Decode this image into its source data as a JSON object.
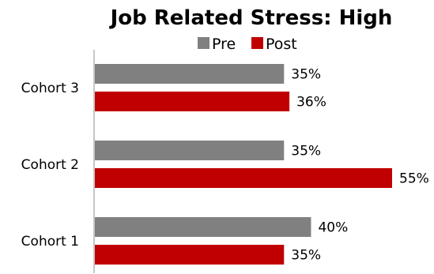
{
  "chart_data": {
    "type": "bar",
    "orientation": "horizontal",
    "title": "Job Related Stress: High",
    "categories": [
      "Cohort 3",
      "Cohort 2",
      "Cohort 1"
    ],
    "series": [
      {
        "name": "Pre",
        "color": "#808080",
        "values": [
          35,
          35,
          40
        ],
        "labels": [
          "35%",
          "35%",
          "40%"
        ]
      },
      {
        "name": "Post",
        "color": "#c00000",
        "values": [
          36,
          55,
          35
        ],
        "labels": [
          "36%",
          "55%",
          "35%"
        ]
      }
    ],
    "xlim": [
      0,
      60
    ],
    "grid": false,
    "legend_position": "top"
  }
}
